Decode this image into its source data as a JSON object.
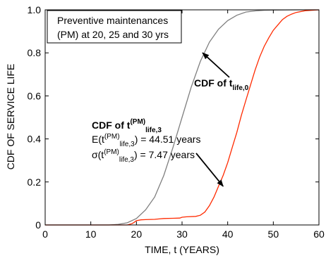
{
  "chart_data": {
    "type": "line",
    "xlabel": "TIME, t (YEARS)",
    "ylabel": "CDF OF SERVICE LIFE",
    "xlim": [
      0,
      60
    ],
    "ylim": [
      0,
      1.0
    ],
    "x_ticks": [
      0,
      10,
      20,
      30,
      40,
      50,
      60
    ],
    "y_ticks": [
      0,
      0.2,
      0.4,
      0.6,
      0.8,
      1.0
    ],
    "x_tick_labels": [
      "0",
      "10",
      "20",
      "30",
      "40",
      "50",
      "60"
    ],
    "y_tick_labels": [
      "0",
      "0.2",
      "0.4",
      "0.6",
      "0.8",
      "1.0"
    ],
    "grid": false,
    "note_lines": [
      "Preventive maintenances",
      "(PM) at 20, 25 and 30 yrs"
    ],
    "series": [
      {
        "color": "#7f7f7f",
        "x": [
          0,
          14,
          16,
          18,
          20,
          22,
          24,
          26,
          28,
          30,
          32,
          34,
          36,
          38,
          40,
          42,
          44,
          46,
          48,
          50,
          55,
          60
        ],
        "y": [
          0,
          0,
          0.003,
          0.01,
          0.03,
          0.07,
          0.13,
          0.23,
          0.36,
          0.5,
          0.64,
          0.76,
          0.85,
          0.91,
          0.95,
          0.975,
          0.99,
          0.995,
          0.998,
          0.999,
          1.0,
          1.0
        ]
      },
      {
        "color": "#ff2a00",
        "x": [
          0,
          18,
          19,
          19.5,
          20,
          21,
          22,
          24,
          25,
          26,
          28,
          29.5,
          30,
          31,
          33,
          34,
          35,
          36,
          37,
          38,
          39,
          40,
          41,
          42,
          43,
          44,
          45,
          46,
          47,
          48,
          49,
          50,
          51,
          52,
          53,
          54,
          55,
          57,
          60
        ],
        "y": [
          0,
          0,
          0.006,
          0.012,
          0.02,
          0.024,
          0.025,
          0.026,
          0.028,
          0.03,
          0.031,
          0.032,
          0.036,
          0.038,
          0.04,
          0.045,
          0.06,
          0.09,
          0.13,
          0.18,
          0.23,
          0.29,
          0.36,
          0.43,
          0.51,
          0.58,
          0.65,
          0.72,
          0.78,
          0.83,
          0.87,
          0.905,
          0.93,
          0.955,
          0.97,
          0.98,
          0.988,
          0.996,
          1.0
        ]
      }
    ],
    "annotations": {
      "life0": {
        "prefix": "CDF of t",
        "sub": "life,0",
        "arrow_target": [
          34.5,
          0.8
        ]
      },
      "life3": {
        "prefix": "CDF of t",
        "sup": "(PM)",
        "sub": "life,3",
        "mean_prefix": "E(t",
        "mean_sup": "(PM)",
        "mean_sub": "life,3",
        "mean_suffix": ") = 44.51 years",
        "std_prefix": "σ(t",
        "std_sup": "(PM)",
        "std_sub": "life,3",
        "std_suffix": ") = 7.47 years",
        "arrow_target": [
          39,
          0.18
        ]
      }
    }
  }
}
